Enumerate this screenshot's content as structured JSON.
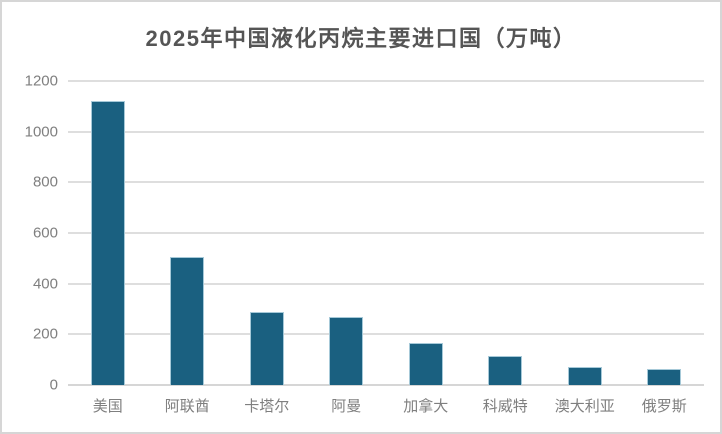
{
  "chart_data": {
    "type": "bar",
    "title": "2025年中国液化丙烷主要进口国（万吨）",
    "categories": [
      "美国",
      "阿联酋",
      "卡塔尔",
      "阿曼",
      "加拿大",
      "科威特",
      "澳大利亚",
      "俄罗斯"
    ],
    "values": [
      1120,
      505,
      290,
      270,
      165,
      115,
      70,
      65
    ],
    "xlabel": "",
    "ylabel": "",
    "ylim": [
      0,
      1200
    ],
    "yticks": [
      0,
      200,
      400,
      600,
      800,
      1000,
      1200
    ],
    "grid": true,
    "legend_position": "none",
    "colors": {
      "bar_fill": "#1a6080",
      "bar_edge": "#a6c9d8",
      "gridline": "#dedede",
      "axis_text": "#7f7f7f",
      "title_text": "#555555",
      "background": "#ffffff",
      "frame_border": "#d6d6d6"
    }
  }
}
